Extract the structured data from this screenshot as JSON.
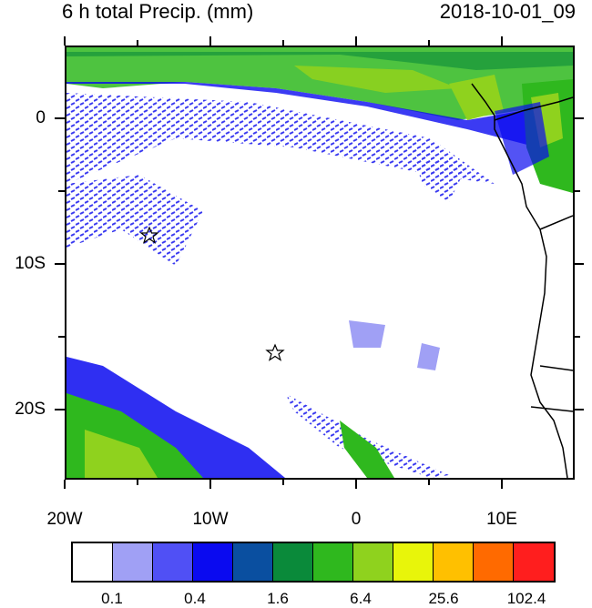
{
  "header": {
    "title": "6 h total Precip. (mm)",
    "timestamp": "2018-10-01_09"
  },
  "axes": {
    "lon_labels": [
      "20W",
      "10W",
      "0",
      "10E"
    ],
    "lat_labels": [
      "0",
      "10S",
      "20S"
    ]
  },
  "colorbar": {
    "colors": [
      "#ffffff",
      "#a0a0f5",
      "#5050f5",
      "#0a0af0",
      "#0a4fa0",
      "#0a8a3a",
      "#2fb81e",
      "#8fd21e",
      "#e8f50a",
      "#ffc000",
      "#ff6a00",
      "#ff1e1e"
    ],
    "labels": [
      "0.1",
      "0.4",
      "1.6",
      "6.4",
      "25.6",
      "102.4"
    ]
  },
  "markers": [
    {
      "symbol": "star",
      "lon": -14.3,
      "lat": -8.0
    },
    {
      "symbol": "star",
      "lon": -5.7,
      "lat": -16.0
    }
  ]
}
